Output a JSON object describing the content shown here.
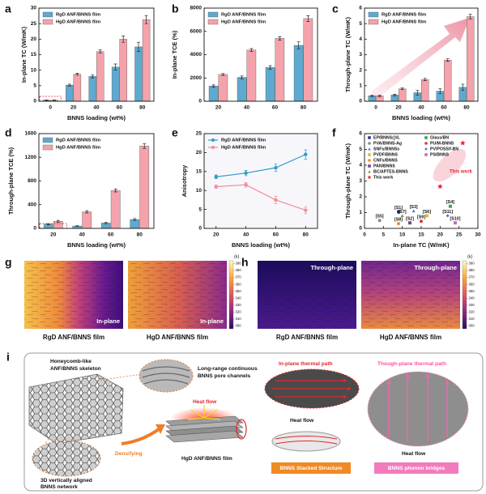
{
  "chart_data": [
    {
      "type": "bar",
      "panel_label": "a",
      "ylabel": "In-plane TC (W/mK)",
      "xlabel": "BNNS loading (wt%)",
      "categories": [
        "0",
        "20",
        "40",
        "60",
        "80"
      ],
      "series": [
        {
          "name": "RgD ANF/BNNS film",
          "color": "#5ea9cf",
          "values": [
            0.35,
            5.2,
            8.0,
            11.0,
            17.5
          ],
          "errors": [
            0.05,
            0.3,
            0.5,
            1.0,
            1.5
          ]
        },
        {
          "name": "HgD ANF/BNNS film",
          "color": "#f4a2ab",
          "values": [
            0.35,
            8.7,
            16.0,
            20.0,
            26.3
          ],
          "errors": [
            0.05,
            0.3,
            0.5,
            1.0,
            1.3
          ]
        }
      ],
      "ylim": [
        0,
        30
      ],
      "yticks": [
        0,
        5,
        10,
        15,
        20,
        25,
        30
      ],
      "legend": "upper left"
    },
    {
      "type": "bar",
      "panel_label": "b",
      "ylabel": "In-plane TCE (%)",
      "categories": [
        "20",
        "40",
        "60",
        "80"
      ],
      "series": [
        {
          "name": "RgD ANF/BNNS film",
          "color": "#5ea9cf",
          "values": [
            1300,
            2050,
            2900,
            4800
          ],
          "errors": [
            100,
            120,
            150,
            300
          ]
        },
        {
          "name": "HgD ANF/BNNS film",
          "color": "#f4a2ab",
          "values": [
            2300,
            4400,
            5400,
            7100
          ],
          "errors": [
            80,
            120,
            150,
            250
          ]
        }
      ],
      "ylim": [
        0,
        8000
      ],
      "yticks": [
        0,
        2000,
        4000,
        6000,
        8000
      ],
      "legend": "upper left"
    },
    {
      "type": "bar",
      "panel_label": "c",
      "ylabel": "Through-plane TC (W/mK)",
      "xlabel": "BNNS loading (wt%)",
      "categories": [
        "0",
        "20",
        "40",
        "60",
        "80"
      ],
      "series": [
        {
          "name": "RgD ANF/BNNS film",
          "color": "#5ea9cf",
          "values": [
            0.35,
            0.4,
            0.55,
            0.65,
            0.9
          ],
          "errors": [
            0.05,
            0.05,
            0.15,
            0.15,
            0.2
          ]
        },
        {
          "name": "HgD ANF/BNNS film",
          "color": "#f4a2ab",
          "values": [
            0.35,
            0.8,
            1.4,
            2.65,
            5.45
          ],
          "errors": [
            0.05,
            0.05,
            0.07,
            0.08,
            0.15
          ]
        }
      ],
      "ylim": [
        0,
        6
      ],
      "yticks": [
        0,
        1,
        2,
        3,
        4,
        5,
        6
      ],
      "legend": "upper left"
    },
    {
      "type": "bar",
      "panel_label": "d",
      "ylabel": "Through-plane TCE (%)",
      "xlabel": "BNNS loading (wt%)",
      "categories": [
        "20",
        "40",
        "60",
        "80"
      ],
      "series": [
        {
          "name": "RgD ANF/BNNS film",
          "color": "#5ea9cf",
          "values": [
            70,
            40,
            90,
            150
          ],
          "errors": [
            10,
            5,
            10,
            15
          ]
        },
        {
          "name": "HgD ANF/BNNS film",
          "color": "#f4a2ab",
          "values": [
            120,
            280,
            640,
            1390
          ],
          "errors": [
            15,
            20,
            25,
            40
          ]
        }
      ],
      "ylim": [
        0,
        1600
      ],
      "yticks": [
        0,
        400,
        800,
        1200,
        1600
      ],
      "legend": "upper left"
    },
    {
      "type": "line",
      "panel_label": "e",
      "ylabel": "Anisotropy",
      "xlabel": "BNNS loading (wt%)",
      "x": [
        20,
        40,
        60,
        80
      ],
      "xlim": [
        12,
        88
      ],
      "xticks": [
        20,
        40,
        60,
        80
      ],
      "series": [
        {
          "name": "RgD ANF/BNNS film",
          "color": "#2f9ccb",
          "values": [
            13.6,
            14.6,
            16.0,
            19.5
          ],
          "errors": [
            0.5,
            0.7,
            1.0,
            1.2
          ]
        },
        {
          "name": "HgD ANF/BNNS film",
          "color": "#f08c97",
          "values": [
            11.0,
            11.5,
            7.5,
            4.8
          ],
          "errors": [
            0.4,
            0.6,
            1.0,
            0.9
          ]
        }
      ],
      "ylim": [
        0,
        25
      ],
      "yticks": [
        0,
        5,
        10,
        15,
        20,
        25
      ],
      "legend": "upper left"
    },
    {
      "type": "scatter",
      "panel_label": "f",
      "ylabel": "Through-plane TC (W/mK)",
      "xlabel": "In-plane TC (W/mK)",
      "xlim": [
        0,
        30
      ],
      "xticks": [
        0,
        5,
        10,
        15,
        20,
        25,
        30
      ],
      "ylim": [
        0,
        6
      ],
      "yticks": [
        0,
        1,
        2,
        3,
        4,
        5,
        6
      ],
      "annotation": "This work",
      "legend": "upper left",
      "series": [
        {
          "name": "EP/BNNS@IL",
          "color": "#2b3a8c",
          "marker": "square",
          "x": [
            9
          ],
          "values": [
            1.05
          ],
          "point_labels": [
            "[S1]"
          ]
        },
        {
          "name": "PVA/BNNS-Ag",
          "color": "#8a8a8a",
          "marker": "circle",
          "x": [
            4
          ],
          "values": [
            0.5
          ],
          "point_labels": [
            "[S5]"
          ]
        },
        {
          "name": "SNFs/BNNSs",
          "color": "#3f7fd8",
          "marker": "triangle",
          "x": [
            13
          ],
          "values": [
            1.1
          ],
          "point_labels": [
            "[S3]"
          ]
        },
        {
          "name": "PVDF/BNNS",
          "color": "#e2b93b",
          "marker": "square",
          "x": [
            16.5
          ],
          "values": [
            0.8
          ],
          "point_labels": [
            "[S6]"
          ]
        },
        {
          "name": "CNFs/BNNS",
          "color": "#f08a24",
          "marker": "circle",
          "x": [
            9
          ],
          "values": [
            0.3
          ],
          "point_labels": [
            "[S8]"
          ]
        },
        {
          "name": "PAN/BNNS",
          "color": "#7b3fa0",
          "marker": "square",
          "x": [
            12
          ],
          "values": [
            0.35
          ],
          "point_labels": [
            "[S2]"
          ]
        },
        {
          "name": "BC/APTES-BNNS",
          "color": "#8c8c3a",
          "marker": "triangle",
          "x": [
            10
          ],
          "values": [
            0.8
          ],
          "point_labels": [
            "[S7]"
          ]
        },
        {
          "name": "This work",
          "color": "#e3262d",
          "marker": "star",
          "x": [
            20,
            26
          ],
          "values": [
            2.65,
            5.4
          ]
        },
        {
          "name": "Glass/BN",
          "color": "#3aa35a",
          "marker": "square",
          "x": [
            22.7
          ],
          "values": [
            1.4
          ],
          "point_labels": [
            "[S4]"
          ]
        },
        {
          "name": "PU/M-BNNS",
          "color": "#d13b3b",
          "marker": "circle",
          "x": [
            15
          ],
          "values": [
            0.45
          ],
          "point_labels": [
            "[S9]"
          ]
        },
        {
          "name": "PV/POSS/f-BN",
          "color": "#4a6fd1",
          "marker": "diamond",
          "x": [
            22
          ],
          "values": [
            0.8
          ],
          "point_labels": [
            "[S11]"
          ]
        },
        {
          "name": "PS/BNNS",
          "color": "#d16ab8",
          "marker": "square",
          "x": [
            24
          ],
          "values": [
            0.35
          ],
          "point_labels": [
            "[S10]"
          ]
        }
      ]
    }
  ],
  "heatmaps": {
    "colorbar": {
      "unit": "(k)",
      "lim": [
        296,
        394
      ],
      "ticks": [
        300,
        310,
        320,
        330,
        340,
        350,
        360,
        370,
        380,
        390
      ]
    },
    "panels": [
      {
        "panel_label": "g",
        "images": [
          {
            "caption": "RgD ANF/BNNS film",
            "overlay": "In-plane"
          },
          {
            "caption": "HgD ANF/BNNS film",
            "overlay": "In-plane"
          }
        ]
      },
      {
        "panel_label": "h",
        "images": [
          {
            "caption": "RgD ANF/BNNS film",
            "overlay": "Through-plane"
          },
          {
            "caption": "HgD ANF/BNNS film",
            "overlay": "Through-plane"
          }
        ]
      }
    ]
  },
  "diagram": {
    "panel_label": "i",
    "skeleton": [
      "Honeycomb-like",
      "ANF/BNNS skeleton"
    ],
    "channels": [
      "Long-range continuous",
      "BNNS pore channels"
    ],
    "network": [
      "3D vertically aligned",
      "BNNS network"
    ],
    "densifying": "Densifying",
    "heat_flow_film": "Heat flow",
    "film": "HgD ANF/BNNS film",
    "in_plane_path": "In-plane thermal path",
    "in_plane_heat_flow": "Heat flow",
    "stacked": "BNNS Stacked Structure",
    "through_plane_path": "Though-plane thermal path",
    "through_plane_heat_flow": "Heat flow",
    "bridges": "BNNS phonon bridges"
  }
}
